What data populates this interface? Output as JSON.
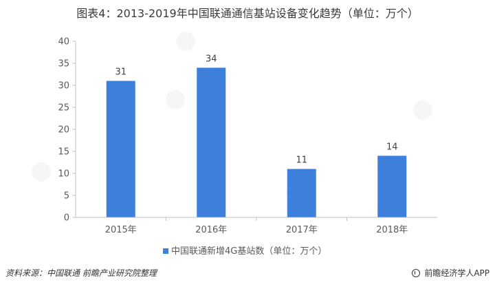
{
  "chart_data": {
    "type": "bar",
    "title": "图表4：2013-2019年中国联通通信基站设备变化趋势（单位：万个）",
    "categories": [
      "2015年",
      "2016年",
      "2017年",
      "2018年"
    ],
    "series": [
      {
        "name": "中国联通新增4G基站数（单位：万个）",
        "values": [
          31,
          34,
          11,
          14
        ],
        "color": "#3f7fdc"
      }
    ],
    "ylim": [
      0,
      40
    ],
    "yticks": [
      0,
      5,
      10,
      15,
      20,
      25,
      30,
      35,
      40
    ],
    "grid": false,
    "legend_position": "bottom",
    "xlabel": "",
    "ylabel": ""
  },
  "footer": {
    "source": "资料来源：中国联通 前瞻产业研究院整理",
    "brand": "前瞻经济学人APP"
  },
  "colors": {
    "bar": "#3f7fdc",
    "axis": "#bfbfbf",
    "text": "#595959"
  }
}
